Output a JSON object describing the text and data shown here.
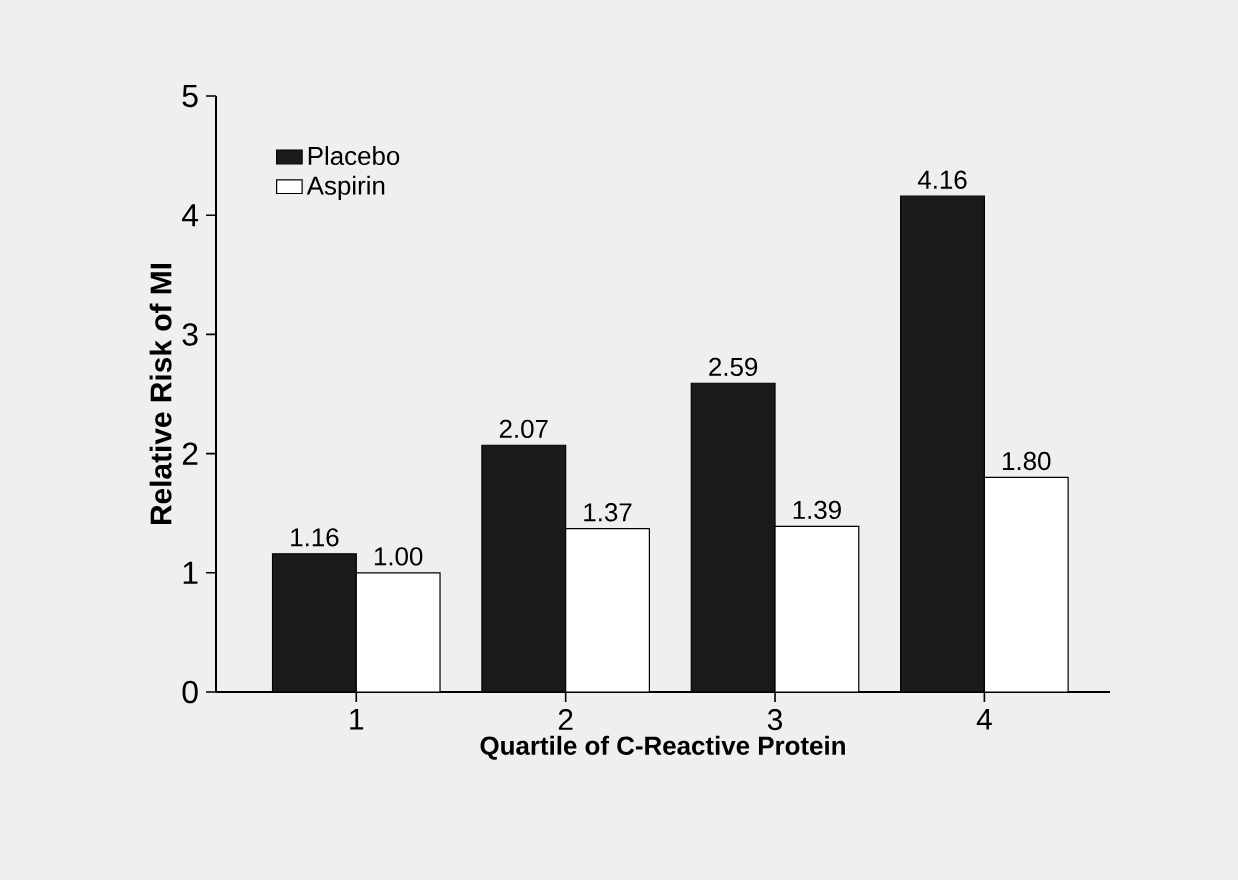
{
  "chart_data": {
    "type": "bar",
    "xlabel": "Quartile of C-Reactive Protein",
    "ylabel": "Relative Risk of MI",
    "categories": [
      "1",
      "2",
      "3",
      "4"
    ],
    "series": [
      {
        "name": "Placebo",
        "color": "#1a1a1a",
        "values": [
          1.16,
          2.07,
          2.59,
          4.16
        ],
        "value_labels": [
          "1.16",
          "2.07",
          "2.59",
          "4.16"
        ]
      },
      {
        "name": "Aspirin",
        "color": "#ffffff",
        "values": [
          1.0,
          1.37,
          1.39,
          1.8
        ],
        "value_labels": [
          "1.00",
          "1.37",
          "1.39",
          "1.80"
        ]
      }
    ],
    "ylim": [
      0,
      5
    ],
    "yticks": [
      0,
      1,
      2,
      3,
      4,
      5
    ],
    "legend": "top left",
    "grid": false
  }
}
